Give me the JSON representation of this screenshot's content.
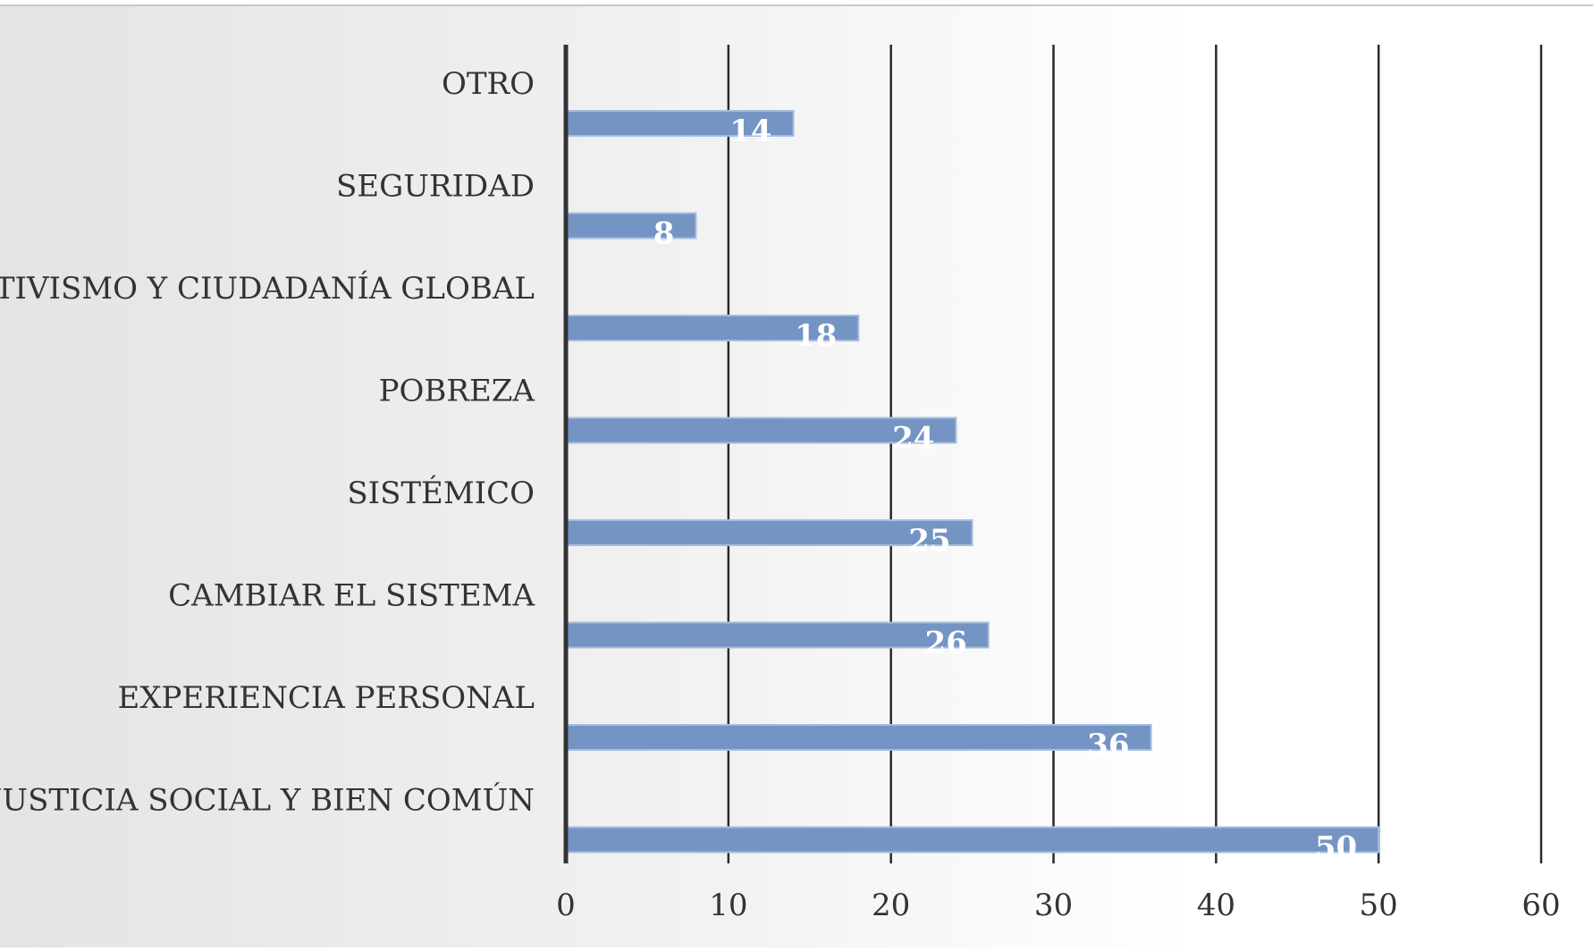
{
  "chart_data": {
    "type": "bar",
    "orientation": "horizontal",
    "categories": [
      "OTRO",
      "SEGURIDAD",
      "ACTIVISMO Y CIUDADANÍA GLOBAL",
      "POBREZA",
      "SISTÉMICO",
      "CAMBIAR EL SISTEMA",
      "EXPERIENCIA PERSONAL",
      "JUSTICIA SOCIAL Y BIEN COMÚN"
    ],
    "values": [
      14,
      8,
      18,
      24,
      25,
      26,
      36,
      50
    ],
    "xlim": [
      0,
      60
    ],
    "xticks": [
      "0",
      "10",
      "20",
      "30",
      "40",
      "50",
      "60"
    ],
    "title": "",
    "xlabel": "",
    "ylabel": "",
    "grid": true,
    "legend": "none",
    "data_labels": true,
    "colors": {
      "bar": "#7494c4",
      "bar_border": "#a7bddf",
      "grid": "#2a2a2a",
      "axis": "#333333",
      "label_text": "#333333",
      "value_text": "#ffffff"
    }
  }
}
